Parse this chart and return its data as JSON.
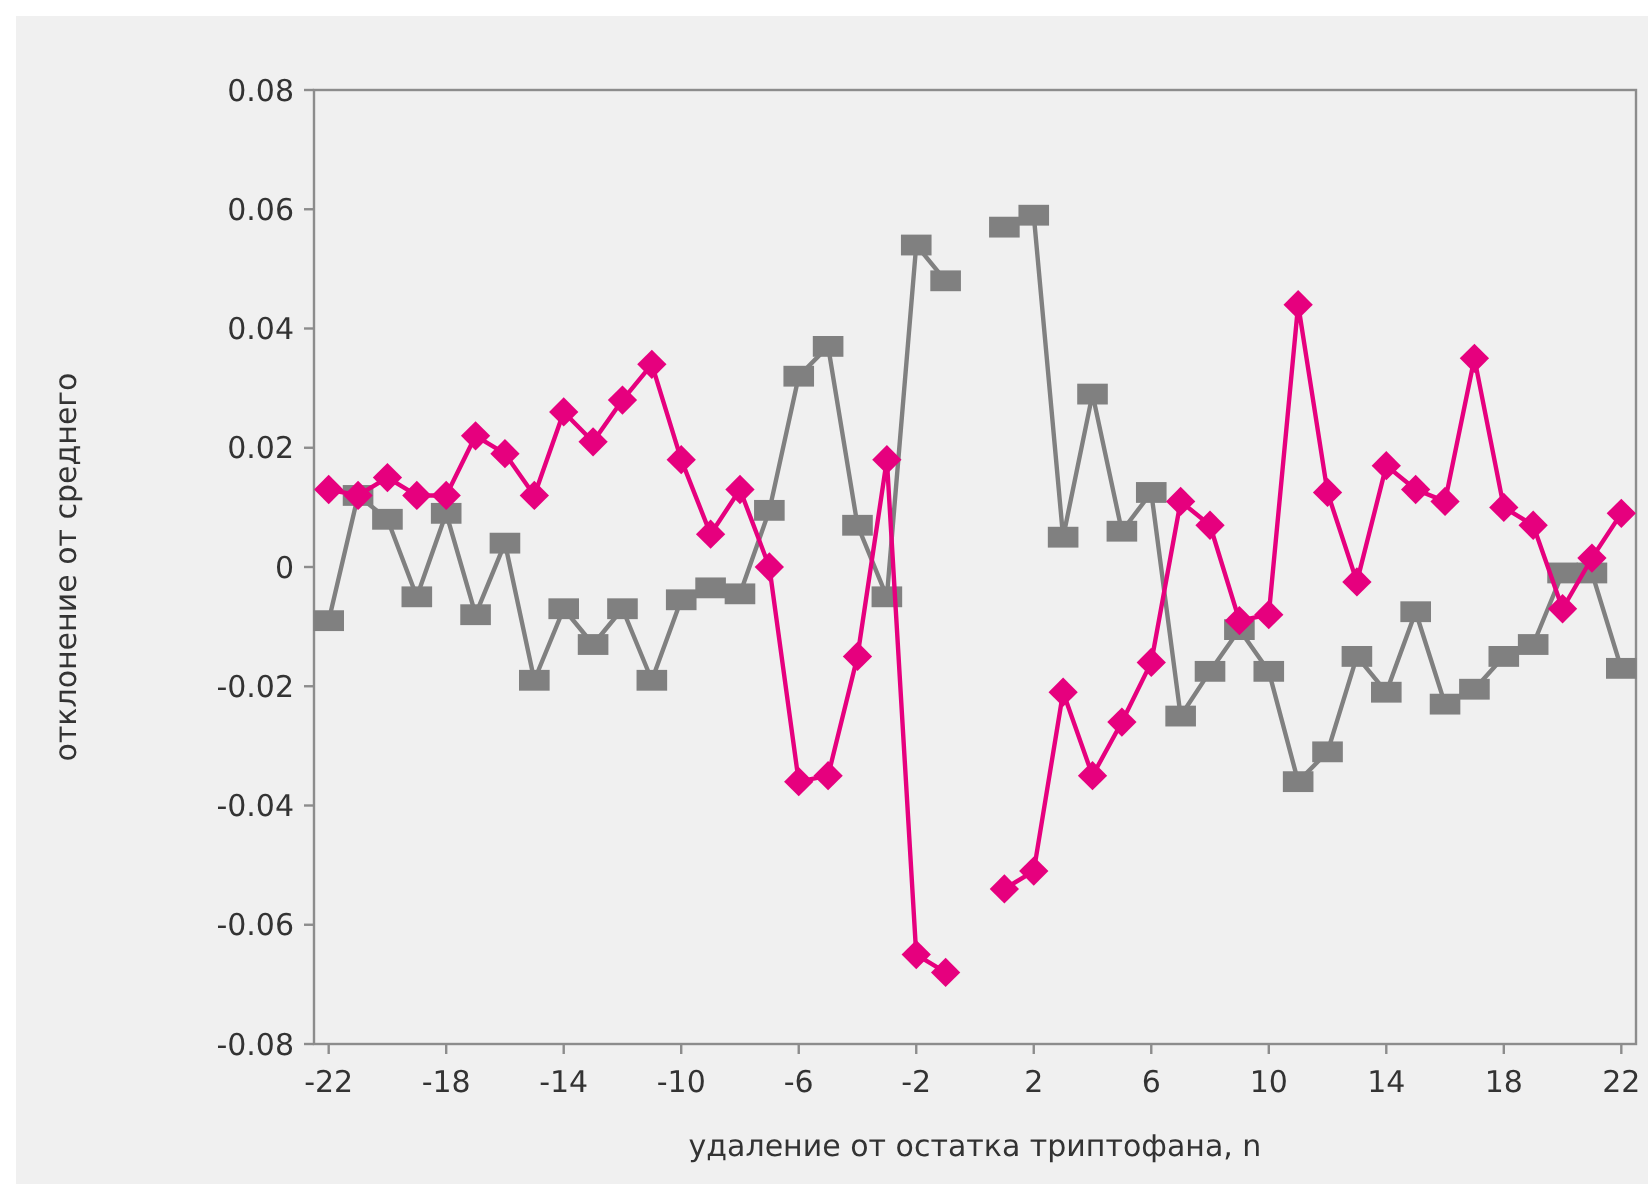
{
  "chart_data": {
    "type": "line",
    "xlabel": "удаление от остатка триптофана, n",
    "ylabel": "отклонение от среднего",
    "categories": [
      "-22",
      null,
      null,
      null,
      "-18",
      null,
      null,
      null,
      "-14",
      null,
      null,
      null,
      "-10",
      null,
      null,
      null,
      "-6",
      null,
      null,
      null,
      "-2",
      null,
      null,
      null,
      "2",
      null,
      null,
      null,
      "6",
      null,
      null,
      null,
      "10",
      null,
      null,
      null,
      "14",
      null,
      null,
      null,
      "18",
      null,
      null,
      null,
      "22"
    ],
    "series": [
      {
        "color": "#e6007e",
        "marker": "diamond",
        "values": [
          0.013,
          0.012,
          0.015,
          0.012,
          0.012,
          0.022,
          0.019,
          0.012,
          0.026,
          0.021,
          0.028,
          0.034,
          0.018,
          0.0055,
          0.013,
          0.0,
          -0.036,
          -0.035,
          -0.015,
          0.018,
          -0.065,
          -0.068,
          null,
          -0.054,
          -0.051,
          -0.021,
          -0.035,
          -0.026,
          -0.016,
          0.011,
          0.007,
          -0.009,
          -0.008,
          0.044,
          0.0125,
          -0.0025,
          0.017,
          0.013,
          0.011,
          0.035,
          0.01,
          0.007,
          -0.007,
          0.0015,
          0.009
        ]
      },
      {
        "color": "#808080",
        "marker": "square",
        "values": [
          -0.009,
          0.012,
          0.008,
          -0.005,
          0.009,
          -0.008,
          0.004,
          -0.019,
          -0.007,
          -0.013,
          -0.007,
          -0.019,
          -0.0055,
          -0.0035,
          -0.0045,
          0.0095,
          0.032,
          0.037,
          0.007,
          -0.005,
          0.054,
          0.048,
          null,
          0.057,
          0.059,
          0.005,
          0.029,
          0.006,
          0.0125,
          -0.025,
          -0.0175,
          -0.0105,
          -0.0175,
          -0.036,
          -0.031,
          -0.015,
          -0.021,
          -0.0075,
          -0.023,
          -0.0205,
          -0.015,
          -0.013,
          -0.001,
          -0.001,
          -0.017
        ]
      }
    ],
    "ylim": [
      -0.08,
      0.08
    ],
    "yticks": [
      -0.08,
      -0.06,
      -0.04,
      -0.02,
      0,
      0.02,
      0.04,
      0.06,
      0.08
    ],
    "grid": false,
    "line_style": "solid"
  }
}
